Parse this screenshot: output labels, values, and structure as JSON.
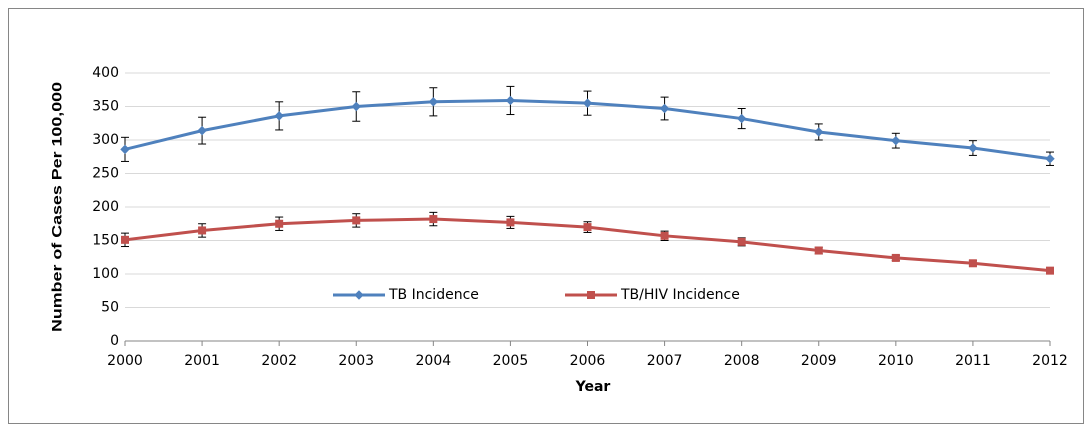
{
  "chart_data": {
    "type": "line",
    "x": [
      2000,
      2001,
      2002,
      2003,
      2004,
      2005,
      2006,
      2007,
      2008,
      2009,
      2010,
      2011,
      2012
    ],
    "series": [
      {
        "name": "TB Incidence",
        "color": "#4f81bd",
        "marker": "diamond",
        "values": [
          286,
          314,
          336,
          350,
          357,
          359,
          355,
          347,
          332,
          312,
          299,
          288,
          272
        ],
        "errors": [
          18,
          20,
          21,
          22,
          21,
          21,
          18,
          17,
          15,
          12,
          11,
          11,
          10
        ]
      },
      {
        "name": "TB/HIV Incidence",
        "color": "#c0504d",
        "marker": "square",
        "values": [
          151,
          165,
          175,
          180,
          182,
          177,
          170,
          157,
          148,
          135,
          124,
          116,
          105
        ],
        "errors": [
          10,
          10,
          10,
          10,
          10,
          9,
          8,
          7,
          6,
          5,
          4,
          4,
          2
        ]
      }
    ],
    "xlabel": "Year",
    "ylabel": "Number of Cases Per 100,000",
    "xlim": [
      2000,
      2012
    ],
    "xticks": [
      2000,
      2001,
      2002,
      2003,
      2004,
      2005,
      2006,
      2007,
      2008,
      2009,
      2010,
      2011,
      2012
    ],
    "ylim": [
      0,
      400
    ],
    "yticks": [
      0,
      50,
      100,
      150,
      200,
      250,
      300,
      350,
      400
    ],
    "grid": true,
    "legend": "bottom"
  }
}
